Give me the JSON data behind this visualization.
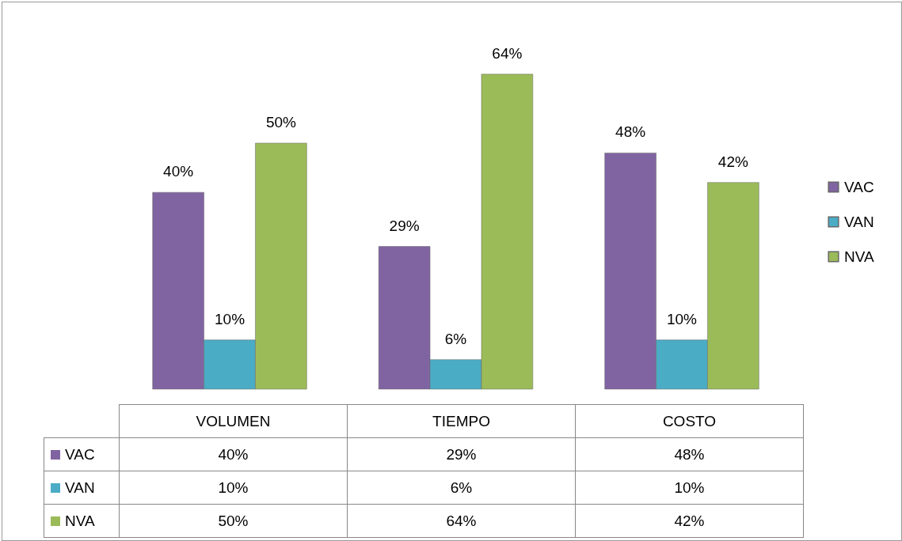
{
  "chart_data": {
    "type": "bar",
    "categories": [
      "VOLUMEN",
      "TIEMPO",
      "COSTO"
    ],
    "series": [
      {
        "name": "VAC",
        "color": "#8064a2",
        "values": [
          40,
          29,
          48
        ],
        "value_labels": [
          "40%",
          "29%",
          "48%"
        ]
      },
      {
        "name": "VAN",
        "color": "#4bacc6",
        "values": [
          10,
          6,
          10
        ],
        "value_labels": [
          "10%",
          "6%",
          "10%"
        ]
      },
      {
        "name": "NVA",
        "color": "#9bbb59",
        "values": [
          50,
          64,
          42
        ],
        "value_labels": [
          "50%",
          "64%",
          "42%"
        ]
      }
    ],
    "legend": "right",
    "grid": false
  }
}
